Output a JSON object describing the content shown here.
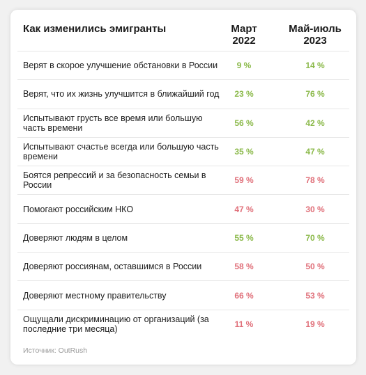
{
  "header": {
    "title": "Как изменились эмигранты",
    "col1_line1": "Март",
    "col1_line2": "2022",
    "col2_line1": "Май-июль",
    "col2_line2": "2023"
  },
  "colors": {
    "increase": "#8bb94a",
    "decrease": "#e0707a"
  },
  "rows": [
    {
      "label": "Верят в скорое улучшение обстановки в России",
      "v1": "9 %",
      "v2": "14 %",
      "trend": "up"
    },
    {
      "label": "Верят, что их жизнь улучшится в ближайший год",
      "v1": "23 %",
      "v2": "76 %",
      "trend": "up"
    },
    {
      "label": "Испытывают грусть все время или большую часть времени",
      "v1": "56 %",
      "v2": "42 %",
      "trend": "up"
    },
    {
      "label": "Испытывают счастье всегда или большую часть времени",
      "v1": "35 %",
      "v2": "47 %",
      "trend": "up"
    },
    {
      "label": "Боятся репрессий и за безопасность семьи в России",
      "v1": "59 %",
      "v2": "78 %",
      "trend": "down"
    },
    {
      "label": "Помогают российским НКО",
      "v1": "47 %",
      "v2": "30 %",
      "trend": "down"
    },
    {
      "label": "Доверяют людям в целом",
      "v1": "55 %",
      "v2": "70 %",
      "trend": "up"
    },
    {
      "label": "Доверяют россиянам, оставшимся в России",
      "v1": "58 %",
      "v2": "50 %",
      "trend": "down"
    },
    {
      "label": "Доверяют местному правительству",
      "v1": "66 %",
      "v2": "53 %",
      "trend": "down"
    },
    {
      "label": "Ощущали дискриминацию от организаций (за последние три месяца)",
      "v1": "11 %",
      "v2": "19 %",
      "trend": "down"
    }
  ],
  "source": "Источник: OutRush"
}
